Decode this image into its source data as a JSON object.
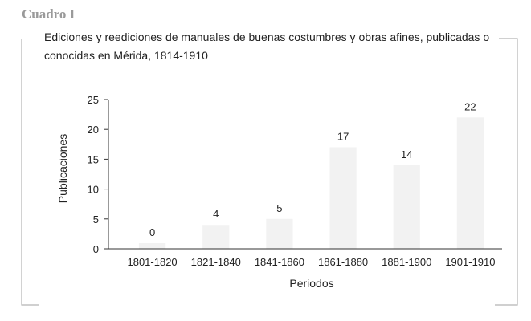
{
  "header": {
    "label": "Cuadro I"
  },
  "chart_data": {
    "type": "bar",
    "title": "Ediciones y reediciones de manuales de buenas costumbres y obras afines, publicadas o conocidas en Mérida, 1814-1910",
    "xlabel": "Periodos",
    "ylabel": "Publicaciones",
    "categories": [
      "1801-1820",
      "1821-1840",
      "1841-1860",
      "1861-1880",
      "1881-1900",
      "1901-1910"
    ],
    "values": [
      0,
      4,
      5,
      17,
      14,
      22
    ],
    "yticks": [
      0,
      5,
      10,
      15,
      20,
      25
    ],
    "ylim": [
      0,
      25
    ],
    "grid": false,
    "bar_color": "#f2f2f2",
    "frame_color": "#b5b5b5"
  }
}
